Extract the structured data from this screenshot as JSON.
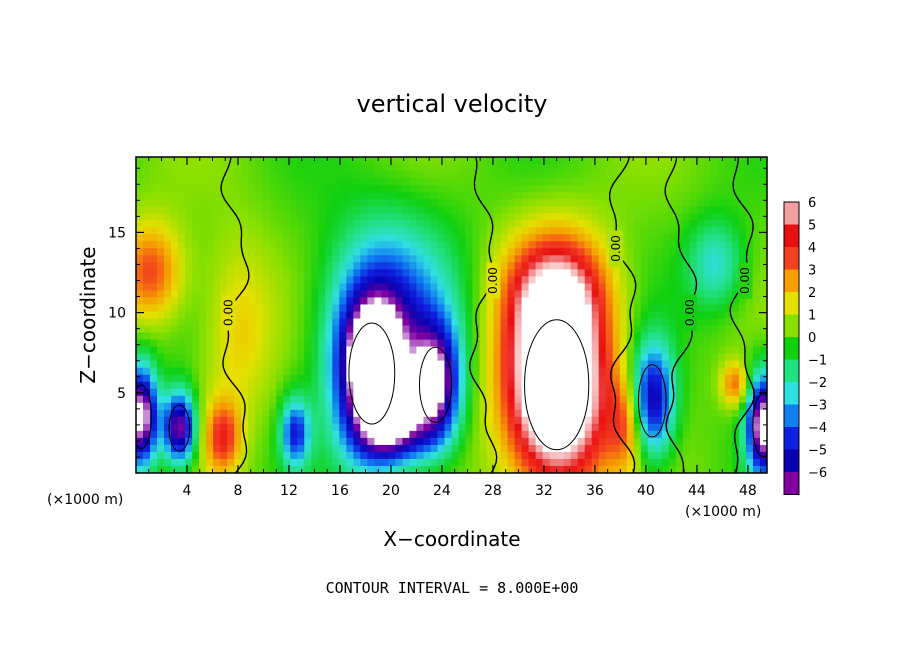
{
  "chart_data": {
    "type": "heatmap",
    "title": "vertical velocity",
    "xlabel": "X−coordinate",
    "ylabel": "Z−coordinate",
    "x_unit": "(×1000 m)",
    "x_unit_right": "(×1000 m)",
    "xlim": [
      0,
      49.5
    ],
    "ylim": [
      0,
      19.7
    ],
    "x_ticks": [
      "4",
      "8",
      "12",
      "16",
      "20",
      "24",
      "28",
      "32",
      "36",
      "40",
      "44",
      "48"
    ],
    "x_tick_values": [
      4,
      8,
      12,
      16,
      20,
      24,
      28,
      32,
      36,
      40,
      44,
      48
    ],
    "y_ticks": [
      "5",
      "10",
      "15"
    ],
    "y_tick_values": [
      5,
      10,
      15
    ],
    "contour_note": "CONTOUR INTERVAL = 8.000E+00",
    "contour_labels": [
      "0.00",
      "0.00",
      "0.00",
      "0.00",
      "0.00"
    ],
    "colorbar": {
      "levels": [
        "6",
        "5",
        "4",
        "3",
        "2",
        "1",
        "0",
        "−1",
        "−2",
        "−3",
        "−4",
        "−5",
        "−6"
      ],
      "colors": [
        "#f4a0a0",
        "#e81010",
        "#f34020",
        "#f5a000",
        "#e6e000",
        "#8ae000",
        "#10d010",
        "#20e080",
        "#30e0e0",
        "#1080f0",
        "#1020e0",
        "#0a00b0",
        "#8000a0"
      ]
    },
    "features": [
      {
        "x": 1.2,
        "z": 12.5,
        "value": 3.5,
        "sx": 1.8,
        "sz": 2.2
      },
      {
        "x": 0.4,
        "z": 3.5,
        "value": -8,
        "sx": 0.9,
        "sz": 2.2
      },
      {
        "x": 3.4,
        "z": 2.8,
        "value": -7,
        "sx": 0.9,
        "sz": 1.6
      },
      {
        "x": 6.8,
        "z": 2.2,
        "value": 3.5,
        "sx": 1.0,
        "sz": 1.6
      },
      {
        "x": 18.5,
        "z": 6.2,
        "value": -9,
        "sx": 2.0,
        "sz": 3.5
      },
      {
        "x": 20.0,
        "z": 10.5,
        "value": -3.5,
        "sx": 3.5,
        "sz": 4.0
      },
      {
        "x": 23.5,
        "z": 5.5,
        "value": -7,
        "sx": 1.4,
        "sz": 2.6
      },
      {
        "x": 20.5,
        "z": 2.5,
        "value": -4.5,
        "sx": 2.0,
        "sz": 1.4
      },
      {
        "x": 33.0,
        "z": 5.5,
        "value": 10,
        "sx": 2.8,
        "sz": 4.5
      },
      {
        "x": 33.0,
        "z": 11.5,
        "value": 3.5,
        "sx": 2.8,
        "sz": 2.5
      },
      {
        "x": 40.5,
        "z": 4.5,
        "value": -6,
        "sx": 1.2,
        "sz": 2.5
      },
      {
        "x": 45.5,
        "z": 13.0,
        "value": -2.5,
        "sx": 1.6,
        "sz": 2.0
      },
      {
        "x": 49.2,
        "z": 3.0,
        "value": -8,
        "sx": 0.9,
        "sz": 2.2
      },
      {
        "x": 12.5,
        "z": 2.5,
        "value": -4.5,
        "sx": 0.8,
        "sz": 1.5
      },
      {
        "x": 8.0,
        "z": 9.0,
        "value": 1.8,
        "sx": 2.0,
        "sz": 4.0
      },
      {
        "x": 38.5,
        "z": 3.0,
        "value": 2.5,
        "sx": 1.0,
        "sz": 2.0
      },
      {
        "x": 47.0,
        "z": 5.5,
        "value": 3.0,
        "sx": 0.8,
        "sz": 1.0
      }
    ]
  }
}
